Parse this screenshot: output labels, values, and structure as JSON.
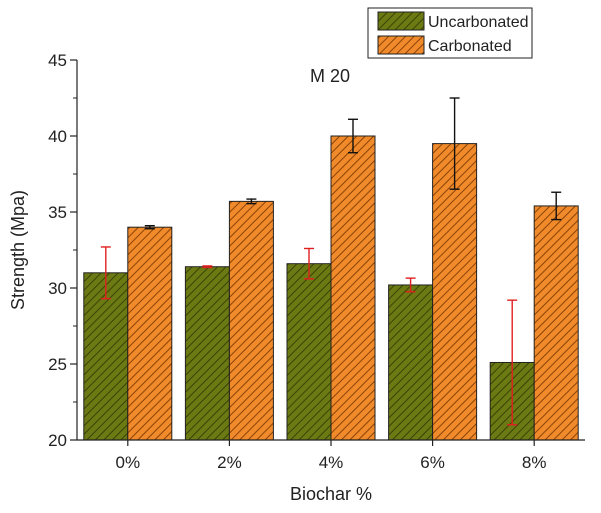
{
  "chart_data": {
    "type": "bar",
    "title": "M 20",
    "xlabel": "Biochar %",
    "ylabel": "Strength (Mpa)",
    "categories": [
      "0%",
      "2%",
      "4%",
      "6%",
      "8%"
    ],
    "ylim": [
      20,
      45
    ],
    "yticks": [
      20,
      25,
      30,
      35,
      40,
      45
    ],
    "grid": false,
    "legend_position": "top-right",
    "series": [
      {
        "name": "Uncarbonated",
        "color": "#6b7a12",
        "hatch_color": "#3a4205",
        "error_color": "#e02020",
        "values": [
          31.0,
          31.4,
          31.6,
          30.2,
          25.1
        ],
        "errors": [
          1.7,
          0.05,
          1.0,
          0.45,
          4.1
        ]
      },
      {
        "name": "Carbonated",
        "color": "#f08a2a",
        "hatch_color": "#8a4308",
        "error_color": "#111111",
        "values": [
          34.0,
          35.7,
          40.0,
          39.5,
          35.4
        ],
        "errors": [
          0.1,
          0.15,
          1.1,
          3.0,
          0.9
        ]
      }
    ]
  }
}
